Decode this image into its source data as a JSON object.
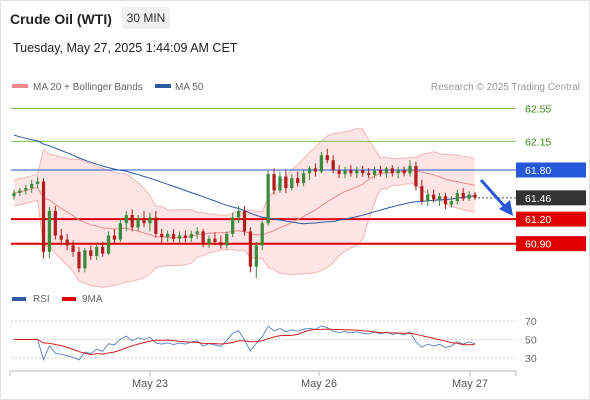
{
  "header": {
    "instrument": "Crude Oil (WTI)",
    "timeframe": "30 MIN",
    "datetime": "Tuesday, May 27, 2025 1:44:09 AM CET"
  },
  "legend": {
    "ma20": "MA 20 + Bollinger Bands",
    "ma50": "MA 50",
    "credit": "Research © 2025 Trading Central",
    "rsi": "RSI",
    "rsi_ma": "9MA"
  },
  "colors": {
    "bull": "#3a8a3a",
    "bear": "#b31c1c",
    "ma20": "#f08a8a",
    "ma50": "#2d5aa0",
    "band_fill": "#fde0e0",
    "resistance": "#7cc250",
    "support": "#e00000",
    "pivot": "#2458d8",
    "last": "#333333",
    "arrow": "#2458d8"
  },
  "chart_data": [
    {
      "type": "candlestick",
      "instrument": "Crude Oil (WTI)",
      "timeframe": "30 MIN",
      "x_ticks": [
        "May 23",
        "May 26",
        "May 27"
      ],
      "ylim": [
        60.42,
        62.74
      ],
      "levels": [
        {
          "value": 62.55,
          "label": "62.55",
          "kind": "resistance"
        },
        {
          "value": 62.15,
          "label": "62.15",
          "kind": "resistance"
        },
        {
          "value": 61.8,
          "label": "61.80",
          "kind": "pivot"
        },
        {
          "value": 61.46,
          "label": "61.46",
          "kind": "last"
        },
        {
          "value": 61.2,
          "label": "61.20",
          "kind": "support"
        },
        {
          "value": 60.9,
          "label": "60.90",
          "kind": "support"
        }
      ],
      "candles": [
        [
          61.48,
          61.56,
          61.44,
          61.52
        ],
        [
          61.52,
          61.58,
          61.48,
          61.55
        ],
        [
          61.55,
          61.62,
          61.5,
          61.58
        ],
        [
          61.58,
          61.68,
          61.52,
          61.63
        ],
        [
          61.63,
          61.72,
          61.58,
          61.66
        ],
        [
          61.66,
          61.7,
          60.72,
          60.8
        ],
        [
          60.8,
          61.35,
          60.72,
          61.3
        ],
        [
          61.3,
          61.36,
          60.95,
          61.0
        ],
        [
          61.0,
          61.08,
          60.88,
          60.95
        ],
        [
          60.95,
          61.02,
          60.82,
          60.88
        ],
        [
          60.88,
          60.94,
          60.74,
          60.8
        ],
        [
          60.8,
          60.86,
          60.55,
          60.6
        ],
        [
          60.6,
          60.85,
          60.55,
          60.82
        ],
        [
          60.82,
          60.88,
          60.7,
          60.75
        ],
        [
          60.75,
          60.9,
          60.7,
          60.86
        ],
        [
          60.86,
          60.92,
          60.74,
          60.78
        ],
        [
          60.78,
          61.05,
          60.76,
          61.0
        ],
        [
          61.0,
          61.08,
          60.9,
          60.95
        ],
        [
          60.95,
          61.2,
          60.92,
          61.15
        ],
        [
          61.15,
          61.3,
          61.05,
          61.25
        ],
        [
          61.25,
          61.32,
          61.05,
          61.1
        ],
        [
          61.1,
          61.25,
          61.05,
          61.2
        ],
        [
          61.2,
          61.3,
          61.1,
          61.15
        ],
        [
          61.15,
          61.28,
          61.05,
          61.22
        ],
        [
          61.22,
          61.3,
          60.98,
          61.02
        ],
        [
          61.02,
          61.08,
          60.9,
          60.98
        ],
        [
          60.98,
          61.06,
          60.92,
          61.02
        ],
        [
          61.02,
          61.08,
          60.92,
          60.96
        ],
        [
          60.96,
          61.05,
          60.9,
          61.0
        ],
        [
          61.0,
          61.06,
          60.92,
          60.97
        ],
        [
          60.97,
          61.06,
          60.92,
          61.02
        ],
        [
          61.02,
          61.1,
          60.96,
          61.05
        ],
        [
          61.05,
          61.08,
          60.86,
          60.9
        ],
        [
          60.9,
          61.0,
          60.85,
          60.96
        ],
        [
          60.96,
          61.04,
          60.88,
          60.92
        ],
        [
          60.92,
          61.0,
          60.84,
          60.88
        ],
        [
          60.88,
          61.05,
          60.84,
          61.02
        ],
        [
          61.02,
          61.28,
          60.98,
          61.22
        ],
        [
          61.22,
          61.36,
          61.15,
          61.3
        ],
        [
          61.3,
          61.36,
          61.0,
          61.05
        ],
        [
          61.05,
          61.1,
          60.55,
          60.62
        ],
        [
          60.62,
          60.92,
          60.48,
          60.88
        ],
        [
          60.88,
          61.18,
          60.82,
          61.15
        ],
        [
          61.15,
          61.8,
          61.12,
          61.75
        ],
        [
          61.75,
          61.82,
          61.5,
          61.55
        ],
        [
          61.55,
          61.78,
          61.52,
          61.72
        ],
        [
          61.72,
          61.8,
          61.52,
          61.58
        ],
        [
          61.58,
          61.75,
          61.55,
          61.7
        ],
        [
          61.7,
          61.78,
          61.6,
          61.64
        ],
        [
          61.64,
          61.8,
          61.6,
          61.76
        ],
        [
          61.76,
          61.85,
          61.68,
          61.82
        ],
        [
          61.82,
          61.88,
          61.72,
          61.78
        ],
        [
          61.78,
          62.02,
          61.76,
          61.98
        ],
        [
          61.98,
          62.06,
          61.88,
          61.92
        ],
        [
          61.92,
          61.98,
          61.76,
          61.8
        ],
        [
          61.8,
          61.86,
          61.7,
          61.75
        ],
        [
          61.75,
          61.84,
          61.7,
          61.8
        ],
        [
          61.8,
          61.86,
          61.72,
          61.76
        ],
        [
          61.76,
          61.84,
          61.7,
          61.8
        ],
        [
          61.8,
          61.85,
          61.72,
          61.76
        ],
        [
          61.76,
          61.82,
          61.7,
          61.74
        ],
        [
          61.74,
          61.84,
          61.7,
          61.8
        ],
        [
          61.8,
          61.85,
          61.72,
          61.76
        ],
        [
          61.76,
          61.84,
          61.7,
          61.82
        ],
        [
          61.82,
          61.86,
          61.72,
          61.76
        ],
        [
          61.76,
          61.84,
          61.7,
          61.8
        ],
        [
          61.8,
          61.84,
          61.72,
          61.76
        ],
        [
          61.76,
          61.92,
          61.72,
          61.85
        ],
        [
          61.85,
          61.9,
          61.55,
          61.6
        ],
        [
          61.6,
          61.68,
          61.38,
          61.42
        ],
        [
          61.42,
          61.56,
          61.36,
          61.5
        ],
        [
          61.5,
          61.56,
          61.4,
          61.44
        ],
        [
          61.44,
          61.52,
          61.36,
          61.48
        ],
        [
          61.48,
          61.52,
          61.32,
          61.38
        ],
        [
          61.38,
          61.48,
          61.34,
          61.42
        ],
        [
          61.42,
          61.56,
          61.38,
          61.52
        ],
        [
          61.52,
          61.58,
          61.42,
          61.45
        ],
        [
          61.45,
          61.54,
          61.42,
          61.5
        ],
        [
          61.5,
          61.53,
          61.43,
          61.46
        ]
      ]
    },
    {
      "type": "line",
      "title": "RSI",
      "series_labels": [
        "RSI",
        "9MA"
      ],
      "y_ticks": [
        70,
        50,
        30
      ],
      "ylim": [
        25,
        75
      ]
    }
  ]
}
